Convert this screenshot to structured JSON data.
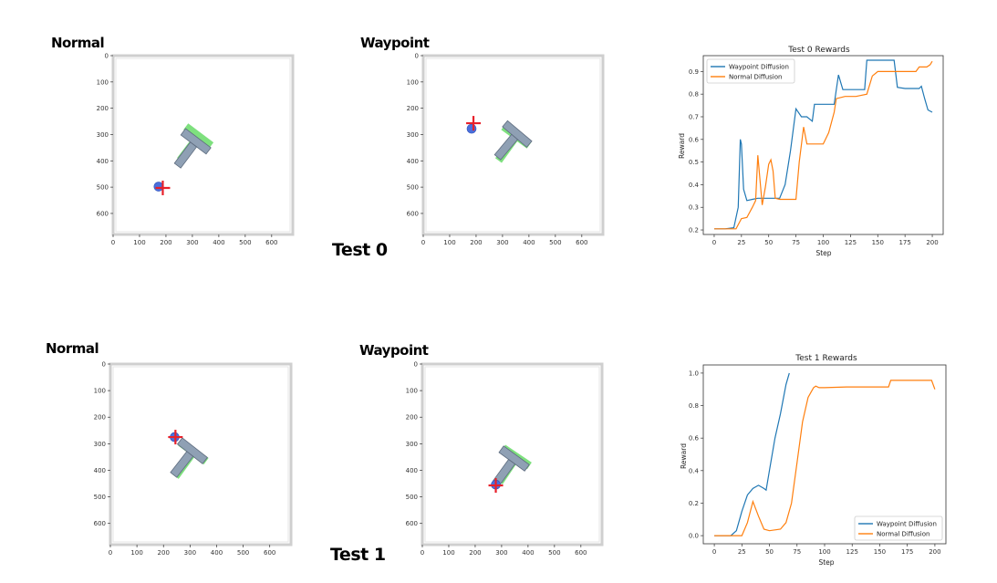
{
  "panel_labels": {
    "normal": "Normal",
    "waypoint": "Waypoint"
  },
  "colors": {
    "waypoint": "#1f77b4",
    "normal": "#ff7f0e",
    "t_block": "#8fa0b4",
    "t_block_edge": "#5d6b7e",
    "goal": "#7ee07e",
    "agent": "#4a6fdc",
    "target_cross": "#e8202a"
  },
  "sims": {
    "axis_ticks": [
      0,
      100,
      200,
      300,
      400,
      500,
      600
    ],
    "xlim": [
      0,
      680
    ],
    "ylim": [
      680,
      0
    ]
  },
  "tests": [
    {
      "caption": "Test 0",
      "sim_panels": [
        {
          "label_key": "normal",
          "t_pose": {
            "x": 280,
            "y": 370,
            "angle": 37
          },
          "goal_pose": {
            "x": 290,
            "y": 350,
            "angle": 37
          },
          "agent": {
            "x": 172,
            "y": 498
          },
          "cross": {
            "x": 188,
            "y": 503
          }
        },
        {
          "label_key": "waypoint",
          "t_pose": {
            "x": 320,
            "y": 340,
            "angle": 40
          },
          "goal_pose": {
            "x": 320,
            "y": 350,
            "angle": 36
          },
          "agent": {
            "x": 183,
            "y": 278
          },
          "cross": {
            "x": 190,
            "y": 257
          }
        }
      ],
      "chart_data": {
        "type": "line",
        "title": "Test 0 Rewards",
        "xlabel": "Step",
        "ylabel": "Reward",
        "xlim": [
          -10,
          210
        ],
        "ylim": [
          0.18,
          0.97
        ],
        "xticks": [
          0,
          25,
          50,
          75,
          100,
          125,
          150,
          175,
          200
        ],
        "yticks": [
          0.2,
          0.3,
          0.4,
          0.5,
          0.6,
          0.7,
          0.8,
          0.9
        ],
        "legend_position": "top-left",
        "series": [
          {
            "name": "Waypoint Diffusion",
            "color_key": "waypoint",
            "points": [
              [
                0,
                0.205
              ],
              [
                10,
                0.205
              ],
              [
                18,
                0.21
              ],
              [
                22,
                0.3
              ],
              [
                24,
                0.6
              ],
              [
                25,
                0.58
              ],
              [
                27,
                0.38
              ],
              [
                30,
                0.33
              ],
              [
                35,
                0.335
              ],
              [
                40,
                0.34
              ],
              [
                60,
                0.34
              ],
              [
                65,
                0.4
              ],
              [
                70,
                0.55
              ],
              [
                75,
                0.735
              ],
              [
                80,
                0.7
              ],
              [
                85,
                0.7
              ],
              [
                90,
                0.68
              ],
              [
                92,
                0.755
              ],
              [
                100,
                0.755
              ],
              [
                110,
                0.755
              ],
              [
                114,
                0.885
              ],
              [
                118,
                0.82
              ],
              [
                130,
                0.82
              ],
              [
                138,
                0.82
              ],
              [
                140,
                0.95
              ],
              [
                150,
                0.95
              ],
              [
                160,
                0.95
              ],
              [
                165,
                0.95
              ],
              [
                168,
                0.83
              ],
              [
                175,
                0.825
              ],
              [
                182,
                0.825
              ],
              [
                188,
                0.825
              ],
              [
                190,
                0.835
              ],
              [
                193,
                0.78
              ],
              [
                196,
                0.73
              ],
              [
                200,
                0.72
              ]
            ]
          },
          {
            "name": "Normal Diffusion",
            "color_key": "normal",
            "points": [
              [
                0,
                0.205
              ],
              [
                20,
                0.205
              ],
              [
                25,
                0.25
              ],
              [
                30,
                0.255
              ],
              [
                35,
                0.3
              ],
              [
                38,
                0.33
              ],
              [
                40,
                0.53
              ],
              [
                42,
                0.42
              ],
              [
                44,
                0.31
              ],
              [
                47,
                0.39
              ],
              [
                50,
                0.49
              ],
              [
                52,
                0.51
              ],
              [
                54,
                0.46
              ],
              [
                56,
                0.34
              ],
              [
                60,
                0.335
              ],
              [
                72,
                0.335
              ],
              [
                75,
                0.335
              ],
              [
                78,
                0.5
              ],
              [
                82,
                0.655
              ],
              [
                85,
                0.58
              ],
              [
                95,
                0.58
              ],
              [
                100,
                0.58
              ],
              [
                105,
                0.63
              ],
              [
                110,
                0.72
              ],
              [
                112,
                0.78
              ],
              [
                120,
                0.79
              ],
              [
                130,
                0.79
              ],
              [
                140,
                0.8
              ],
              [
                145,
                0.88
              ],
              [
                150,
                0.9
              ],
              [
                170,
                0.9
              ],
              [
                185,
                0.9
              ],
              [
                188,
                0.92
              ],
              [
                195,
                0.92
              ],
              [
                198,
                0.93
              ],
              [
                200,
                0.945
              ]
            ]
          }
        ]
      }
    },
    {
      "caption": "Test 1",
      "sim_panels": [
        {
          "label_key": "normal",
          "t_pose": {
            "x": 275,
            "y": 370,
            "angle": 38
          },
          "goal_pose": {
            "x": 280,
            "y": 375,
            "angle": 36
          },
          "agent": {
            "x": 242,
            "y": 275
          },
          "cross": {
            "x": 245,
            "y": 275
          }
        },
        {
          "label_key": "waypoint",
          "t_pose": {
            "x": 315,
            "y": 400,
            "angle": 36
          },
          "goal_pose": {
            "x": 325,
            "y": 395,
            "angle": 34
          },
          "agent": {
            "x": 278,
            "y": 454
          },
          "cross": {
            "x": 278,
            "y": 457
          }
        }
      ],
      "chart_data": {
        "type": "line",
        "title": "Test 1 Rewards",
        "xlabel": "Step",
        "ylabel": "Reward",
        "xlim": [
          -10,
          210
        ],
        "ylim": [
          -0.05,
          1.05
        ],
        "xticks": [
          0,
          25,
          50,
          75,
          100,
          125,
          150,
          175,
          200
        ],
        "yticks": [
          0.0,
          0.2,
          0.4,
          0.6,
          0.8,
          1.0
        ],
        "legend_position": "bottom-right",
        "series": [
          {
            "name": "Waypoint Diffusion",
            "color_key": "waypoint",
            "points": [
              [
                0,
                0.0
              ],
              [
                15,
                0.0
              ],
              [
                20,
                0.03
              ],
              [
                25,
                0.15
              ],
              [
                30,
                0.25
              ],
              [
                35,
                0.29
              ],
              [
                40,
                0.31
              ],
              [
                45,
                0.29
              ],
              [
                47,
                0.28
              ],
              [
                50,
                0.4
              ],
              [
                55,
                0.6
              ],
              [
                60,
                0.75
              ],
              [
                65,
                0.93
              ],
              [
                68,
                1.0
              ]
            ]
          },
          {
            "name": "Normal Diffusion",
            "color_key": "normal",
            "points": [
              [
                0,
                0.0
              ],
              [
                25,
                0.0
              ],
              [
                30,
                0.08
              ],
              [
                35,
                0.21
              ],
              [
                40,
                0.12
              ],
              [
                45,
                0.04
              ],
              [
                50,
                0.03
              ],
              [
                60,
                0.04
              ],
              [
                65,
                0.08
              ],
              [
                70,
                0.2
              ],
              [
                75,
                0.45
              ],
              [
                80,
                0.7
              ],
              [
                85,
                0.85
              ],
              [
                90,
                0.91
              ],
              [
                92,
                0.92
              ],
              [
                95,
                0.91
              ],
              [
                100,
                0.91
              ],
              [
                120,
                0.915
              ],
              [
                150,
                0.915
              ],
              [
                158,
                0.915
              ],
              [
                160,
                0.955
              ],
              [
                170,
                0.955
              ],
              [
                190,
                0.955
              ],
              [
                197,
                0.955
              ],
              [
                200,
                0.9
              ]
            ]
          }
        ]
      }
    }
  ]
}
